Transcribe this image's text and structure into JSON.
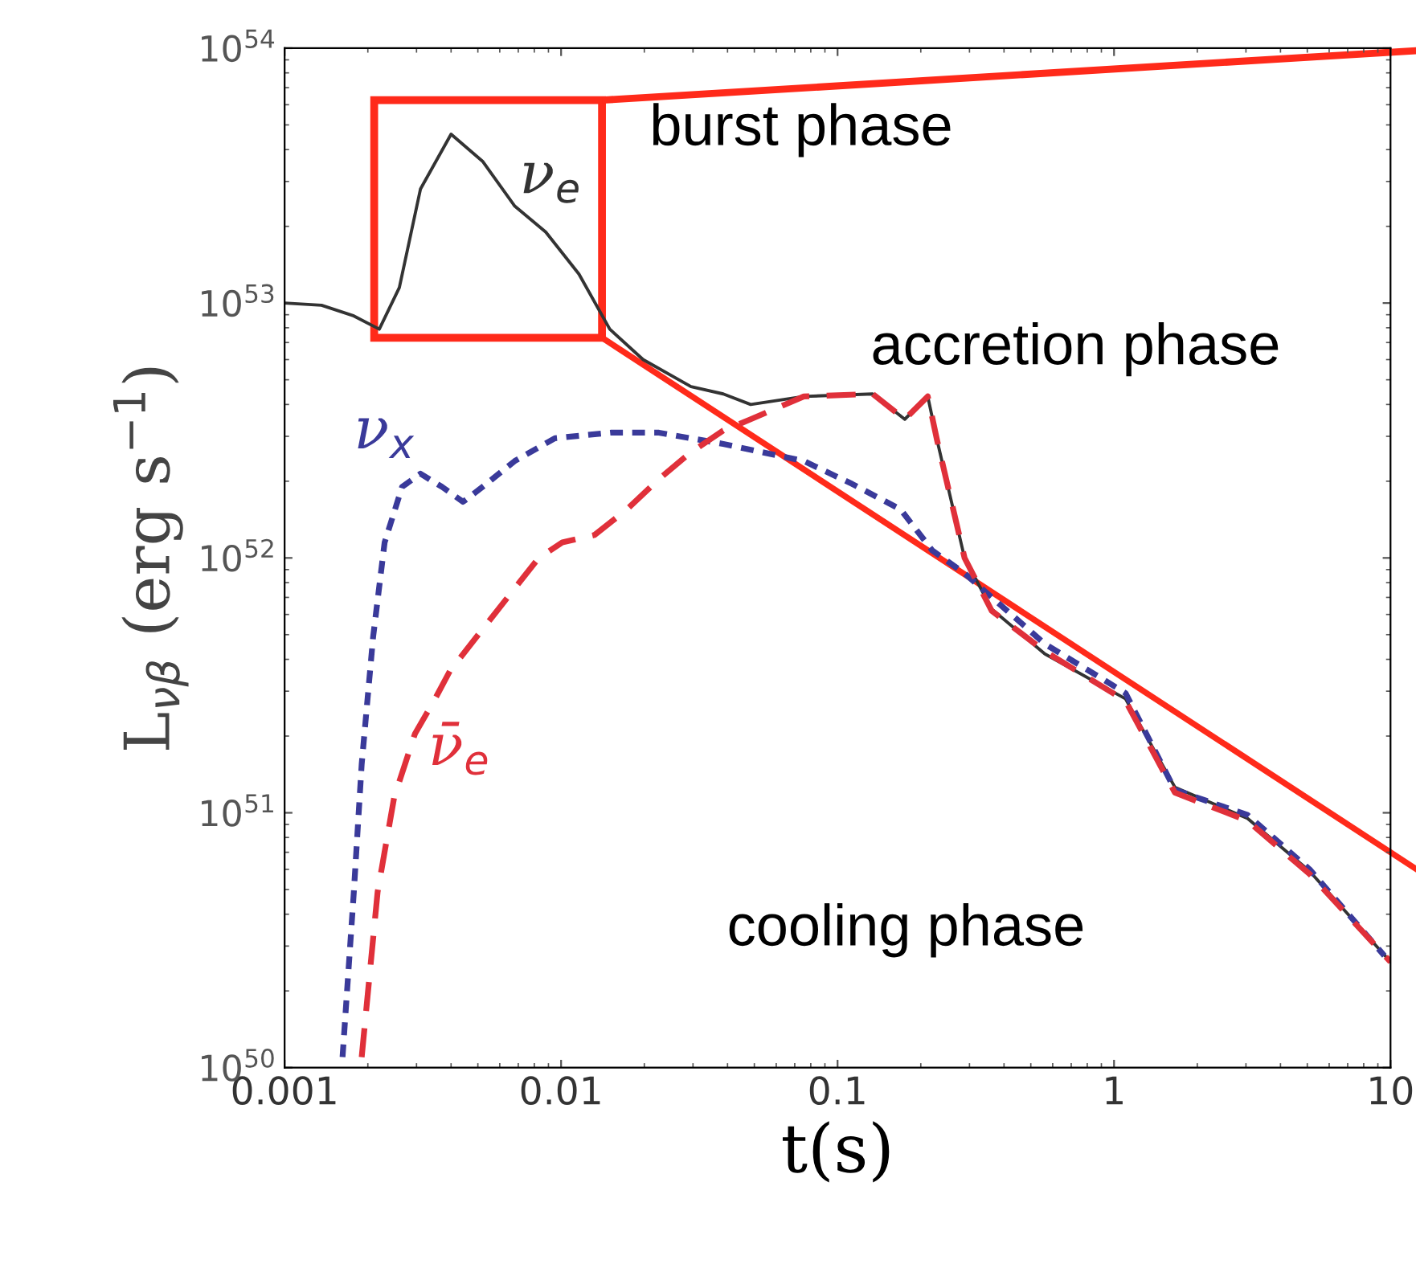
{
  "chart_data": {
    "type": "line",
    "xlabel": "t(s)",
    "ylabel": "L$_{νβ}$ (erg s$^{−1}$)",
    "log": "xy",
    "grid": false,
    "legend": false,
    "xlim": [
      0.001,
      10
    ],
    "xticks": [
      0.001,
      0.01,
      0.1,
      1,
      10
    ],
    "ylim": [
      1e+50,
      1e+54
    ],
    "yticks": [
      {
        "value": 1e+50,
        "label": "10$^{50}$"
      },
      {
        "value": 1e+51,
        "label": "10$^{51}$"
      },
      {
        "value": 1e+52,
        "label": "10$^{52}$"
      },
      {
        "value": 1e+53,
        "label": "10$^{53}$"
      },
      {
        "value": 1e+54,
        "label": "10$^{54}$"
      }
    ],
    "annotations": [
      "burst phase",
      "accretion phase",
      "cooling phase"
    ],
    "series": [
      {
        "name": "ν$_{e}$",
        "color": "#333333",
        "line_style": "solid",
        "x": [
          0.001,
          0.00136,
          0.00178,
          0.0022,
          0.0026,
          0.0031,
          0.004,
          0.0052,
          0.0068,
          0.0088,
          0.0116,
          0.015,
          0.0198,
          0.0295,
          0.0386,
          0.0485,
          0.0755,
          0.134,
          0.175,
          0.212,
          0.229,
          0.288,
          0.361,
          0.562,
          1.1,
          1.66,
          3.04,
          5.1,
          10
        ],
        "values": [
          1e+53,
          9.8e+52,
          8.9e+52,
          7.9e+52,
          1.15e+53,
          2.8e+53,
          4.6e+53,
          3.6e+53,
          2.4e+53,
          1.9e+53,
          1.3e+53,
          7.9e+52,
          6e+52,
          4.7e+52,
          4.4e+52,
          4e+52,
          4.3e+52,
          4.4e+52,
          3.5e+52,
          4.3e+52,
          2.9e+52,
          1e+52,
          6.3e+51,
          4.2e+51,
          2.8e+51,
          1.26e+51,
          9.5e+50,
          5.9e+50,
          2.6e+50
        ]
      },
      {
        "name": "ν$_{x}$",
        "color": "#3a3a9a",
        "line_style": "dotted",
        "x": [
          0.00162,
          0.00178,
          0.0019,
          0.00209,
          0.0023,
          0.00266,
          0.0031,
          0.00371,
          0.00442,
          0.0052,
          0.0068,
          0.0095,
          0.0151,
          0.0226,
          0.0386,
          0.0755,
          0.113,
          0.169,
          0.22,
          0.288,
          0.562,
          1.1,
          1.66,
          3.04,
          5.1,
          9.5
        ],
        "values": [
          1.1e+50,
          4.9e+50,
          1.55e+51,
          4.9e+51,
          1.15e+52,
          1.9e+52,
          2.14e+52,
          1.9e+52,
          1.66e+52,
          1.9e+52,
          2.4e+52,
          2.95e+52,
          3.1e+52,
          3.1e+52,
          2.8e+52,
          2.4e+52,
          1.95e+52,
          1.55e+52,
          1.07e+52,
          8.7e+51,
          4.6e+51,
          2.95e+51,
          1.23e+51,
          9.8e+50,
          6e+50,
          2.75e+50
        ]
      },
      {
        "name": "ν̄$_{e}$",
        "color": "#e0303a",
        "line_style": "dashed",
        "x": [
          0.0019,
          0.00217,
          0.00249,
          0.00296,
          0.00347,
          0.00396,
          0.0052,
          0.0068,
          0.0083,
          0.0101,
          0.0132,
          0.0173,
          0.0226,
          0.0295,
          0.0386,
          0.0485,
          0.0755,
          0.134,
          0.175,
          0.212,
          0.229,
          0.288,
          0.361,
          0.562,
          1.1,
          1.66,
          3.04,
          5.1,
          10
        ],
        "values": [
          1.1e+50,
          4.9e+50,
          1.15e+51,
          2.04e+51,
          2.75e+51,
          3.6e+51,
          5.25e+51,
          7.6e+51,
          1e+52,
          1.15e+52,
          1.23e+52,
          1.55e+52,
          2.04e+52,
          2.6e+52,
          3.16e+52,
          3.5e+52,
          4.3e+52,
          4.4e+52,
          3.5e+52,
          4.3e+52,
          2.9e+52,
          1e+52,
          6.2e+51,
          4.3e+51,
          2.75e+51,
          1.2e+51,
          9.3e+50,
          5.75e+50,
          2.6e+50
        ]
      }
    ]
  }
}
